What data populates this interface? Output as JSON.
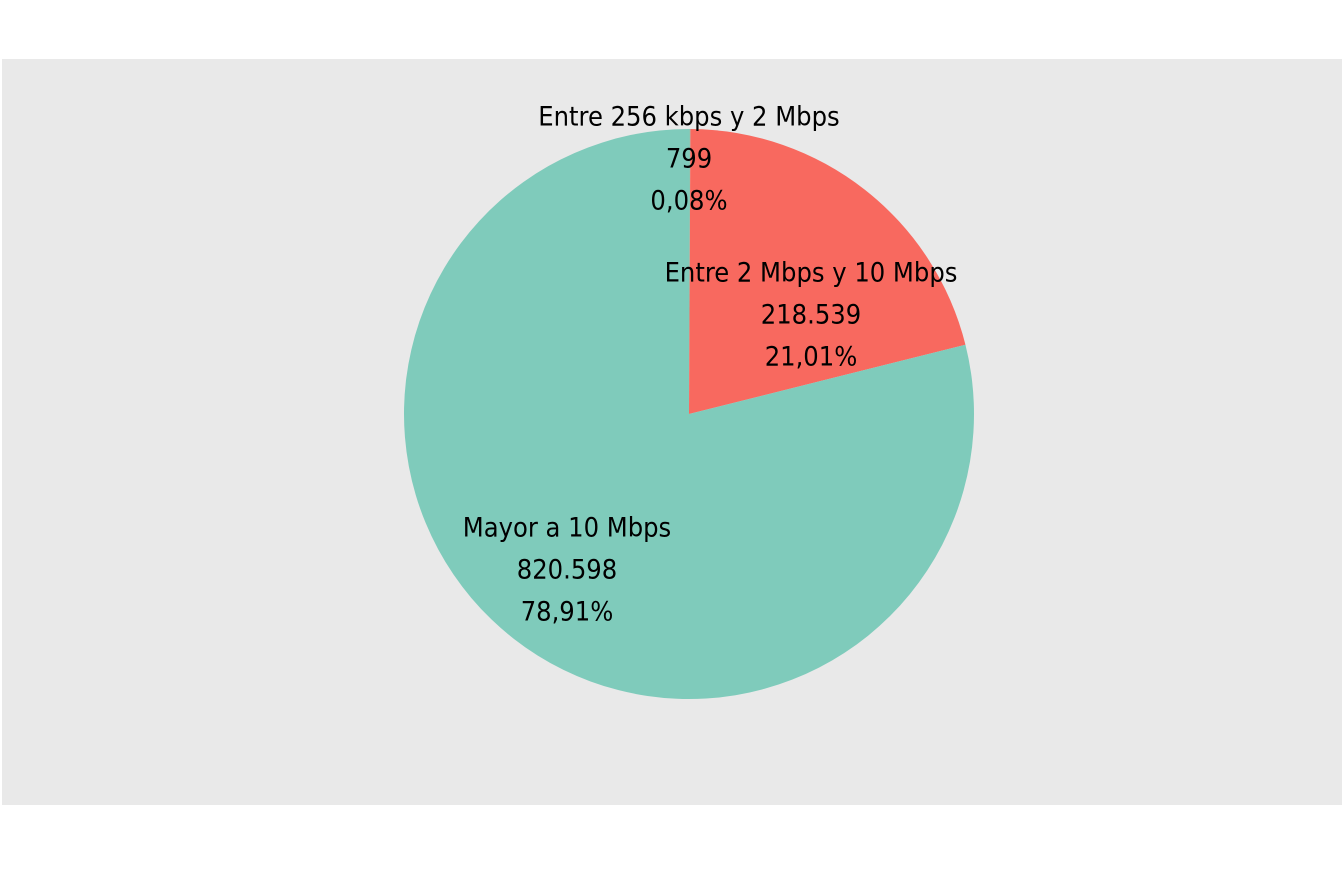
{
  "chart_data": {
    "type": "pie",
    "title": "",
    "legend": "none",
    "start_angle_deg": 0,
    "direction": "clockwise",
    "background_color": "#e9e9e9",
    "slices": [
      {
        "name": "Entre 256 kbps y 2 Mbps",
        "value": 799,
        "value_label": "799",
        "percent_label": "0,08%",
        "color": "#8ac7b4"
      },
      {
        "name": "Entre 2 Mbps y 10 Mbps",
        "value": 218539,
        "value_label": "218.539",
        "percent_label": "21,01%",
        "color": "#f8695f"
      },
      {
        "name": "Mayor a 10 Mbps",
        "value": 820598,
        "value_label": "820.598",
        "percent_label": "78,91%",
        "color": "#7fcbbb"
      }
    ]
  }
}
